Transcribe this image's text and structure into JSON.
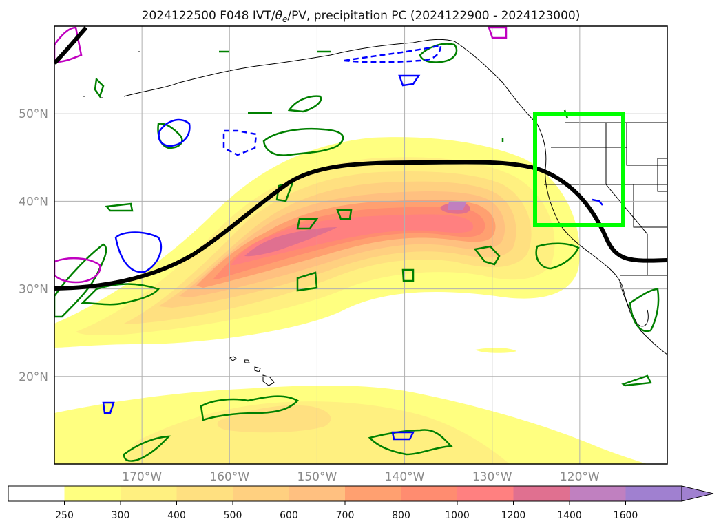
{
  "title": "2024122500 F048 IVT/θe/PV, precipitation PC (2024122900 - 2024123000)",
  "title_parts": {
    "prefix": "2024122500 F048 IVT/",
    "theta": "θ",
    "theta_sub": "e",
    "suffix": "/PV, precipitation PC (2024122900 - 2024123000)"
  },
  "map": {
    "lon_range": [
      -180,
      -110
    ],
    "lat_range": [
      10,
      60
    ],
    "lat_labels": [
      {
        "value": 50,
        "text": "50°N"
      },
      {
        "value": 40,
        "text": "40°N"
      },
      {
        "value": 30,
        "text": "30°N"
      },
      {
        "value": 20,
        "text": "20°N"
      }
    ],
    "lon_labels": [
      {
        "value": -170,
        "text": "170°W"
      },
      {
        "value": -160,
        "text": "160°W"
      },
      {
        "value": -150,
        "text": "150°W"
      },
      {
        "value": -140,
        "text": "140°W"
      },
      {
        "value": -130,
        "text": "130°W"
      },
      {
        "value": -120,
        "text": "120°W"
      }
    ],
    "highlight_box": {
      "lon": [
        -125,
        -115
      ],
      "lat": [
        37.3,
        50
      ],
      "color": "#00ff00"
    }
  },
  "colorbar": {
    "levels": [
      "250",
      "300",
      "400",
      "500",
      "600",
      "700",
      "800",
      "1000",
      "1200",
      "1400",
      "1600"
    ],
    "colors": [
      "#ffffff",
      "#ffff80",
      "#fff080",
      "#ffe080",
      "#ffd080",
      "#ffc080",
      "#ffa070",
      "#ff8c70",
      "#ff8080",
      "#e07090",
      "#c080c0",
      "#a080d0"
    ]
  },
  "colors": {
    "jet_line": "#000000",
    "pv_green": "#008000",
    "pv_blue": "#0000ff",
    "pv_magenta": "#c000c0"
  }
}
